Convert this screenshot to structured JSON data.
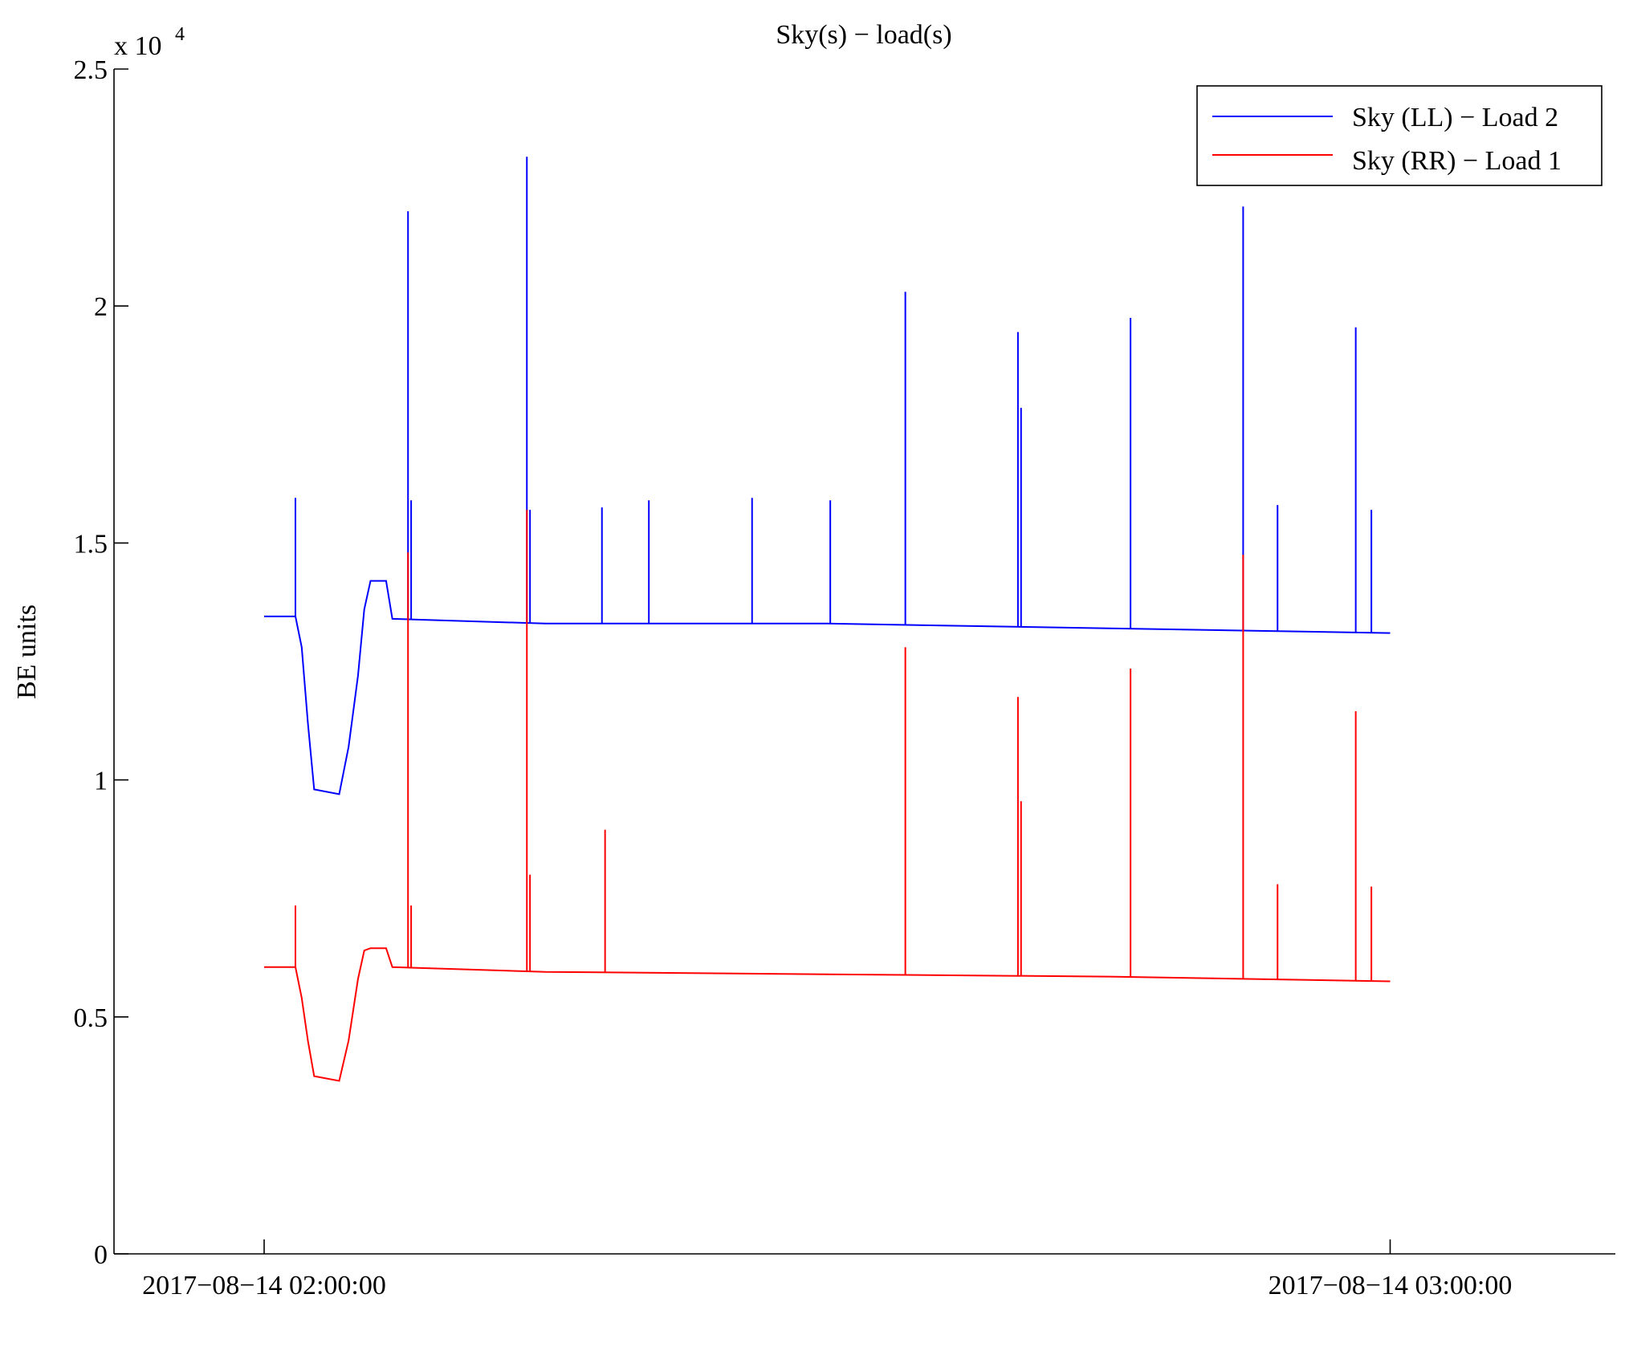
{
  "chart_data": {
    "type": "line",
    "title": "Sky(s) − load(s)",
    "xlabel": "",
    "ylabel": "BE units",
    "y_exponent_label": "x 10",
    "y_exponent_power": "4",
    "ylim": [
      0,
      25000
    ],
    "y_ticks": [
      0,
      5000,
      10000,
      15000,
      20000,
      25000
    ],
    "y_tick_labels": [
      "0",
      "0.5",
      "1",
      "1.5",
      "2",
      "2.5"
    ],
    "xlim": [
      "2017-08-14 01:52:00",
      "2017-08-14 03:12:00"
    ],
    "x_ticks": [
      "2017-08-14 02:00:00",
      "2017-08-14 03:00:00"
    ],
    "x_tick_labels": [
      "2017−08−14 02:00:00",
      "2017−08−14 03:00:00"
    ],
    "grid": false,
    "legend_position": "top-right",
    "series": [
      {
        "name": "Sky (LL) − Load 2",
        "color": "#0000ff",
        "baseline": [
          [
            "2017-08-14 02:00:00",
            13450
          ],
          [
            "2017-08-14 02:01:40",
            13450
          ],
          [
            "2017-08-14 02:02:00",
            12800
          ],
          [
            "2017-08-14 02:02:20",
            11200
          ],
          [
            "2017-08-14 02:02:40",
            9800
          ],
          [
            "2017-08-14 02:04:00",
            9700
          ],
          [
            "2017-08-14 02:04:30",
            10700
          ],
          [
            "2017-08-14 02:05:00",
            12200
          ],
          [
            "2017-08-14 02:05:20",
            13600
          ],
          [
            "2017-08-14 02:05:40",
            14200
          ],
          [
            "2017-08-14 02:06:30",
            14200
          ],
          [
            "2017-08-14 02:06:50",
            13400
          ],
          [
            "2017-08-14 02:15:00",
            13300
          ],
          [
            "2017-08-14 02:30:00",
            13300
          ],
          [
            "2017-08-14 02:45:00",
            13200
          ],
          [
            "2017-08-14 03:00:00",
            13100
          ]
        ],
        "spikes": [
          [
            "2017-08-14 02:01:40",
            15950
          ],
          [
            "2017-08-14 02:07:40",
            22000
          ],
          [
            "2017-08-14 02:07:50",
            15900
          ],
          [
            "2017-08-14 02:14:00",
            23150
          ],
          [
            "2017-08-14 02:14:10",
            15700
          ],
          [
            "2017-08-14 02:18:00",
            15750
          ],
          [
            "2017-08-14 02:20:30",
            15900
          ],
          [
            "2017-08-14 02:26:00",
            15950
          ],
          [
            "2017-08-14 02:30:10",
            15900
          ],
          [
            "2017-08-14 02:34:10",
            20300
          ],
          [
            "2017-08-14 02:40:10",
            19450
          ],
          [
            "2017-08-14 02:40:20",
            17850
          ],
          [
            "2017-08-14 02:46:10",
            19750
          ],
          [
            "2017-08-14 02:52:10",
            22100
          ],
          [
            "2017-08-14 02:58:10",
            19550
          ],
          [
            "2017-08-14 02:54:00",
            15800
          ],
          [
            "2017-08-14 02:59:00",
            15700
          ]
        ]
      },
      {
        "name": "Sky (RR) − Load 1",
        "color": "#ff0000",
        "baseline": [
          [
            "2017-08-14 02:00:00",
            6050
          ],
          [
            "2017-08-14 02:01:40",
            6050
          ],
          [
            "2017-08-14 02:02:00",
            5400
          ],
          [
            "2017-08-14 02:02:20",
            4500
          ],
          [
            "2017-08-14 02:02:40",
            3750
          ],
          [
            "2017-08-14 02:04:00",
            3650
          ],
          [
            "2017-08-14 02:04:30",
            4500
          ],
          [
            "2017-08-14 02:05:00",
            5800
          ],
          [
            "2017-08-14 02:05:20",
            6400
          ],
          [
            "2017-08-14 02:05:40",
            6450
          ],
          [
            "2017-08-14 02:06:30",
            6450
          ],
          [
            "2017-08-14 02:06:50",
            6050
          ],
          [
            "2017-08-14 02:15:00",
            5950
          ],
          [
            "2017-08-14 02:30:00",
            5900
          ],
          [
            "2017-08-14 02:45:00",
            5850
          ],
          [
            "2017-08-14 03:00:00",
            5750
          ]
        ],
        "spikes": [
          [
            "2017-08-14 02:01:40",
            7350
          ],
          [
            "2017-08-14 02:07:40",
            14800
          ],
          [
            "2017-08-14 02:07:50",
            7350
          ],
          [
            "2017-08-14 02:14:00",
            15700
          ],
          [
            "2017-08-14 02:14:10",
            8000
          ],
          [
            "2017-08-14 02:18:10",
            8950
          ],
          [
            "2017-08-14 02:34:10",
            12800
          ],
          [
            "2017-08-14 02:40:10",
            11750
          ],
          [
            "2017-08-14 02:40:20",
            9550
          ],
          [
            "2017-08-14 02:46:10",
            12350
          ],
          [
            "2017-08-14 02:52:10",
            14750
          ],
          [
            "2017-08-14 02:58:10",
            11450
          ],
          [
            "2017-08-14 02:54:00",
            7800
          ],
          [
            "2017-08-14 02:59:00",
            7750
          ]
        ]
      }
    ]
  }
}
